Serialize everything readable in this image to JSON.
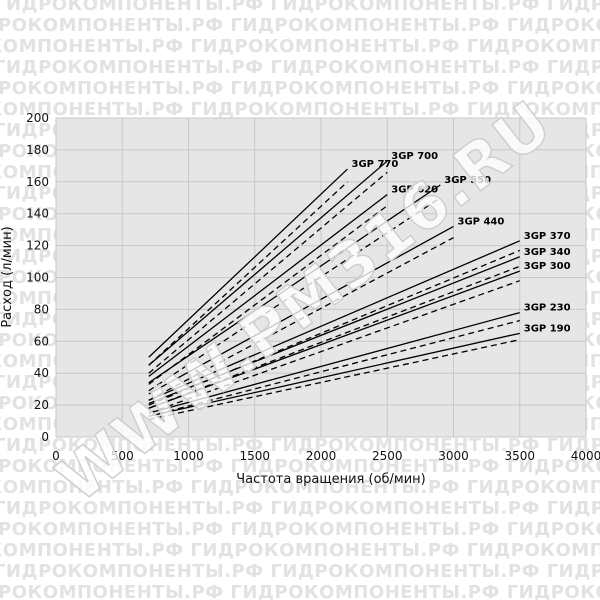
{
  "watermark": {
    "tile_text": "ГИДРОКОМПОНЕНТЫ.РФ",
    "diagonal_text": "WWW.PM316.RU"
  },
  "colors": {
    "plot_background": "#e6e6e6",
    "line": "#000000",
    "watermark_tile": "#e2e2e2"
  },
  "chart_data": {
    "type": "line",
    "xlabel": "Частота вращения (об/мин)",
    "ylabel": "Расход (л/мин)",
    "xlim": [
      0,
      4000
    ],
    "ylim": [
      0,
      200
    ],
    "xticks": [
      0,
      500,
      1000,
      1500,
      2000,
      2500,
      3000,
      3500,
      4000
    ],
    "yticks": [
      0,
      20,
      40,
      60,
      80,
      100,
      120,
      140,
      160,
      180,
      200
    ],
    "grid": true,
    "series": [
      {
        "name": "3GP 770",
        "solid": [
          [
            700,
            50
          ],
          [
            2200,
            168
          ]
        ],
        "dashed": [
          [
            700,
            45
          ],
          [
            2200,
            160
          ]
        ]
      },
      {
        "name": "3GP 700",
        "solid": [
          [
            700,
            45
          ],
          [
            2500,
            173
          ]
        ],
        "dashed": [
          [
            700,
            40
          ],
          [
            2500,
            166
          ]
        ]
      },
      {
        "name": "3GP 620",
        "solid": [
          [
            700,
            38
          ],
          [
            2500,
            152
          ]
        ],
        "dashed": [
          [
            700,
            33
          ],
          [
            2500,
            145
          ]
        ]
      },
      {
        "name": "3GP 550",
        "solid": [
          [
            700,
            34
          ],
          [
            2900,
            158
          ]
        ],
        "dashed": [
          [
            700,
            29
          ],
          [
            2900,
            150
          ]
        ]
      },
      {
        "name": "3GP 440",
        "solid": [
          [
            700,
            27
          ],
          [
            3000,
            132
          ]
        ],
        "dashed": [
          [
            700,
            23
          ],
          [
            3000,
            125
          ]
        ]
      },
      {
        "name": "3GP 370",
        "solid": [
          [
            700,
            23
          ],
          [
            3500,
            123
          ]
        ],
        "dashed": [
          [
            700,
            20
          ],
          [
            3500,
            117
          ]
        ]
      },
      {
        "name": "3GP 340",
        "solid": [
          [
            700,
            21
          ],
          [
            3500,
            113
          ]
        ],
        "dashed": [
          [
            700,
            18
          ],
          [
            3500,
            107
          ]
        ]
      },
      {
        "name": "3GP 300",
        "solid": [
          [
            700,
            18
          ],
          [
            3500,
            104
          ]
        ],
        "dashed": [
          [
            700,
            15
          ],
          [
            3500,
            98
          ]
        ]
      },
      {
        "name": "3GP 230",
        "solid": [
          [
            700,
            15
          ],
          [
            3500,
            78
          ]
        ],
        "dashed": [
          [
            700,
            13
          ],
          [
            3500,
            73
          ]
        ]
      },
      {
        "name": "3GP 190",
        "solid": [
          [
            700,
            13
          ],
          [
            3500,
            65
          ]
        ],
        "dashed": [
          [
            700,
            11
          ],
          [
            3500,
            61
          ]
        ]
      }
    ]
  }
}
